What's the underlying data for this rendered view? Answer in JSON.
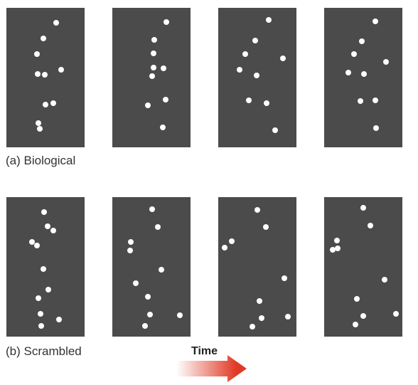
{
  "labels": {
    "biological": "(a) Biological",
    "scrambled": "(b) Scrambled",
    "time": "Time"
  },
  "colors": {
    "panel_background": "#4b4b4b",
    "dot": "#ffffff",
    "arrow_start": "#ffffff",
    "arrow_end": "#e03a26"
  },
  "icons": {
    "time_arrow": "right-arrow-icon"
  },
  "rows": [
    {
      "name": "biological",
      "frames": [
        {
          "points": [
            [
              70,
              21
            ],
            [
              52,
              43
            ],
            [
              43,
              65
            ],
            [
              44,
              93
            ],
            [
              54,
              94
            ],
            [
              77,
              87
            ],
            [
              55,
              136
            ],
            [
              66,
              134
            ],
            [
              45,
              162
            ],
            [
              47,
              170
            ]
          ]
        },
        {
          "points": [
            [
              76,
              20
            ],
            [
              59,
              45
            ],
            [
              58,
              64
            ],
            [
              58,
              84
            ],
            [
              56,
              96
            ],
            [
              72,
              85
            ],
            [
              50,
              137
            ],
            [
              75,
              129
            ],
            [
              71,
              168
            ]
          ]
        },
        {
          "points": [
            [
              71,
              17
            ],
            [
              52,
              46
            ],
            [
              38,
              65
            ],
            [
              30,
              87
            ],
            [
              54,
              95
            ],
            [
              91,
              71
            ],
            [
              43,
              130
            ],
            [
              68,
              134
            ],
            [
              80,
              172
            ]
          ]
        },
        {
          "points": [
            [
              72,
              19
            ],
            [
              53,
              47
            ],
            [
              42,
              65
            ],
            [
              34,
              91
            ],
            [
              56,
              93
            ],
            [
              87,
              76
            ],
            [
              51,
              131
            ],
            [
              72,
              130
            ],
            [
              73,
              169
            ]
          ]
        }
      ]
    },
    {
      "name": "scrambled",
      "frames": [
        {
          "points": [
            [
              53,
              21
            ],
            [
              58,
              41
            ],
            [
              66,
              47
            ],
            [
              36,
              63
            ],
            [
              43,
              68
            ],
            [
              52,
              101
            ],
            [
              59,
              130
            ],
            [
              45,
              142
            ],
            [
              48,
              164
            ],
            [
              49,
              181
            ],
            [
              74,
              172
            ]
          ]
        },
        {
          "points": [
            [
              56,
              17
            ],
            [
              64,
              42
            ],
            [
              26,
              63
            ],
            [
              25,
              75
            ],
            [
              69,
              102
            ],
            [
              33,
              121
            ],
            [
              50,
              140
            ],
            [
              53,
              165
            ],
            [
              46,
              181
            ],
            [
              95,
              166
            ]
          ]
        },
        {
          "points": [
            [
              55,
              18
            ],
            [
              67,
              42
            ],
            [
              19,
              62
            ],
            [
              9,
              71
            ],
            [
              93,
              114
            ],
            [
              58,
              146
            ],
            [
              61,
              170
            ],
            [
              48,
              182
            ],
            [
              98,
              168
            ]
          ]
        },
        {
          "points": [
            [
              55,
              15
            ],
            [
              65,
              40
            ],
            [
              18,
              61
            ],
            [
              19,
              72
            ],
            [
              12,
              74
            ],
            [
              85,
              116
            ],
            [
              46,
              143
            ],
            [
              55,
              167
            ],
            [
              44,
              179
            ],
            [
              101,
              164
            ]
          ]
        }
      ]
    }
  ]
}
